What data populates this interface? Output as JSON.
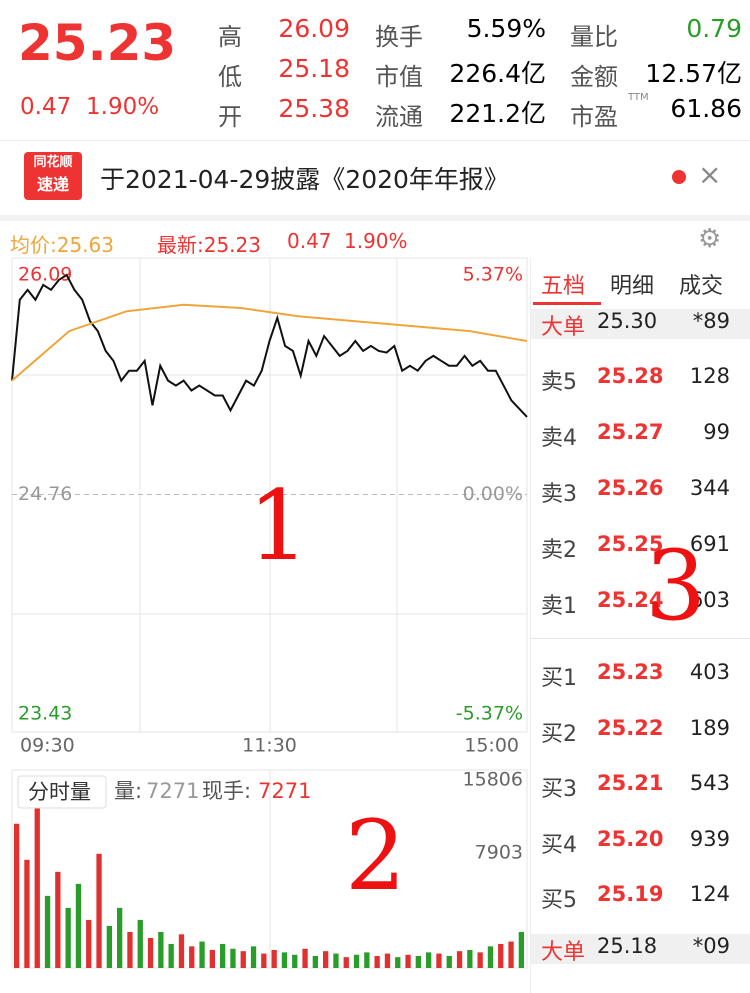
{
  "header": {
    "price": "25.23",
    "change": "0.47",
    "change_pct": "1.90%",
    "stats": [
      {
        "label": "高",
        "value": "26.09"
      },
      {
        "label": "换手",
        "value": "5.59%"
      },
      {
        "label": "量比",
        "value": "0.79"
      },
      {
        "label": "低",
        "value": "25.18"
      },
      {
        "label": "市值",
        "value": "226.4亿"
      },
      {
        "label": "金额",
        "value": "12.57亿"
      },
      {
        "label": "开",
        "value": "25.38"
      },
      {
        "label": "流通",
        "value": "221.2亿"
      },
      {
        "label": "市盈",
        "sup": "TTM",
        "value": "61.86"
      }
    ]
  },
  "notice": {
    "badge_top": "同花顺",
    "badge_bottom": "速递",
    "text": "于2021-04-29披露《2020年年报》"
  },
  "info": {
    "avg": "均价:25.63",
    "latest": "最新:25.23",
    "change": "0.47",
    "change_pct": "1.90%"
  },
  "chart_data": [
    {
      "type": "line",
      "series": [
        {
          "color": "#111111",
          "values": [
            25.45,
            25.94,
            26.0,
            25.94,
            26.03,
            26.0,
            26.06,
            26.09,
            26.0,
            25.94,
            25.81,
            25.75,
            25.63,
            25.57,
            25.45,
            25.51,
            25.51,
            25.57,
            25.3,
            25.54,
            25.45,
            25.42,
            25.45,
            25.39,
            25.42,
            25.39,
            25.36,
            25.36,
            25.27,
            25.36,
            25.45,
            25.42,
            25.51,
            25.69,
            25.83,
            25.66,
            25.63,
            25.48,
            25.69,
            25.6,
            25.72,
            25.66,
            25.6,
            25.63,
            25.69,
            25.63,
            25.66,
            25.63,
            25.62,
            25.66,
            25.51,
            25.54,
            25.51,
            25.57,
            25.6,
            25.57,
            25.54,
            25.54,
            25.6,
            25.54,
            25.57,
            25.51,
            25.51,
            25.42,
            25.33,
            25.28,
            25.23
          ]
        },
        {
          "color": "#f0a53a",
          "values": [
            25.45,
            25.75,
            25.87,
            25.91,
            25.89,
            25.84,
            25.81,
            25.78,
            25.75,
            25.69
          ]
        }
      ],
      "ylim": [
        23.43,
        26.09
      ],
      "yticks": [
        26.09,
        24.76,
        23.43
      ],
      "y2lim": [
        -5.37,
        5.37
      ],
      "y2ticks": [
        {
          "value": 5.37,
          "label": "5.37%"
        },
        {
          "value": 0,
          "label": "0.00%"
        },
        {
          "value": -5.37,
          "label": "-5.37%"
        }
      ],
      "xtick_labels": [
        "09:30",
        "11:30",
        "15:00"
      ]
    },
    {
      "type": "bar",
      "title": "分时量",
      "volume_label": "量:",
      "volume": "7271",
      "hand_label": "现手:",
      "hand": "7271",
      "values": [
        12000,
        9000,
        15806,
        6000,
        8000,
        5000,
        7000,
        4000,
        9500,
        3500,
        5000,
        3000,
        4000,
        2500,
        3000,
        2000,
        2800,
        1800,
        2200,
        1500,
        2000,
        1600,
        1400,
        1800,
        1200,
        1500,
        1300,
        1100,
        1600,
        1000,
        1400,
        1200,
        900,
        1100,
        1300,
        1000,
        1200,
        900,
        1100,
        1000,
        1300,
        1200,
        1000,
        1400,
        1500,
        1300,
        1800,
        2000,
        2200,
        3000
      ],
      "colors": [
        "#e03030",
        "#e03030",
        "#e03030",
        "#2a9c2a",
        "#e03030",
        "#2a9c2a",
        "#2a9c2a",
        "#e03030",
        "#e03030",
        "#2a9c2a",
        "#2a9c2a",
        "#e03030",
        "#2a9c2a",
        "#e03030",
        "#2a9c2a",
        "#2a9c2a",
        "#e03030",
        "#e03030",
        "#2a9c2a",
        "#e03030",
        "#2a9c2a",
        "#2a9c2a",
        "#e03030",
        "#2a9c2a",
        "#e03030",
        "#e03030",
        "#2a9c2a",
        "#2a9c2a",
        "#e03030",
        "#2a9c2a",
        "#e03030",
        "#2a9c2a",
        "#e03030",
        "#2a9c2a",
        "#2a9c2a",
        "#e03030",
        "#e03030",
        "#2a9c2a",
        "#e03030",
        "#2a9c2a",
        "#2a9c2a",
        "#e03030",
        "#2a9c2a",
        "#e03030",
        "#2a9c2a",
        "#e03030",
        "#2a9c2a",
        "#e03030",
        "#e03030",
        "#2a9c2a"
      ],
      "ylim": [
        0,
        15806
      ],
      "yticks": [
        7903,
        15806
      ]
    }
  ],
  "order_book": {
    "tabs": [
      "五档",
      "明细",
      "成交"
    ],
    "big_top": {
      "label": "大单",
      "price": "25.30",
      "count": "*89"
    },
    "asks": [
      {
        "label": "卖5",
        "price": "25.28",
        "volume": "128"
      },
      {
        "label": "卖4",
        "price": "25.27",
        "volume": "99"
      },
      {
        "label": "卖3",
        "price": "25.26",
        "volume": "344"
      },
      {
        "label": "卖2",
        "price": "25.25",
        "volume": "691"
      },
      {
        "label": "卖1",
        "price": "25.24",
        "volume": "603"
      }
    ],
    "bids": [
      {
        "label": "买1",
        "price": "25.23",
        "volume": "403"
      },
      {
        "label": "买2",
        "price": "25.22",
        "volume": "189"
      },
      {
        "label": "买3",
        "price": "25.21",
        "volume": "543"
      },
      {
        "label": "买4",
        "price": "25.20",
        "volume": "939"
      },
      {
        "label": "买5",
        "price": "25.19",
        "volume": "124"
      }
    ],
    "big_bottom": {
      "label": "大单",
      "price": "25.18",
      "count": "*09"
    }
  },
  "annotations": [
    "1",
    "2",
    "3"
  ]
}
